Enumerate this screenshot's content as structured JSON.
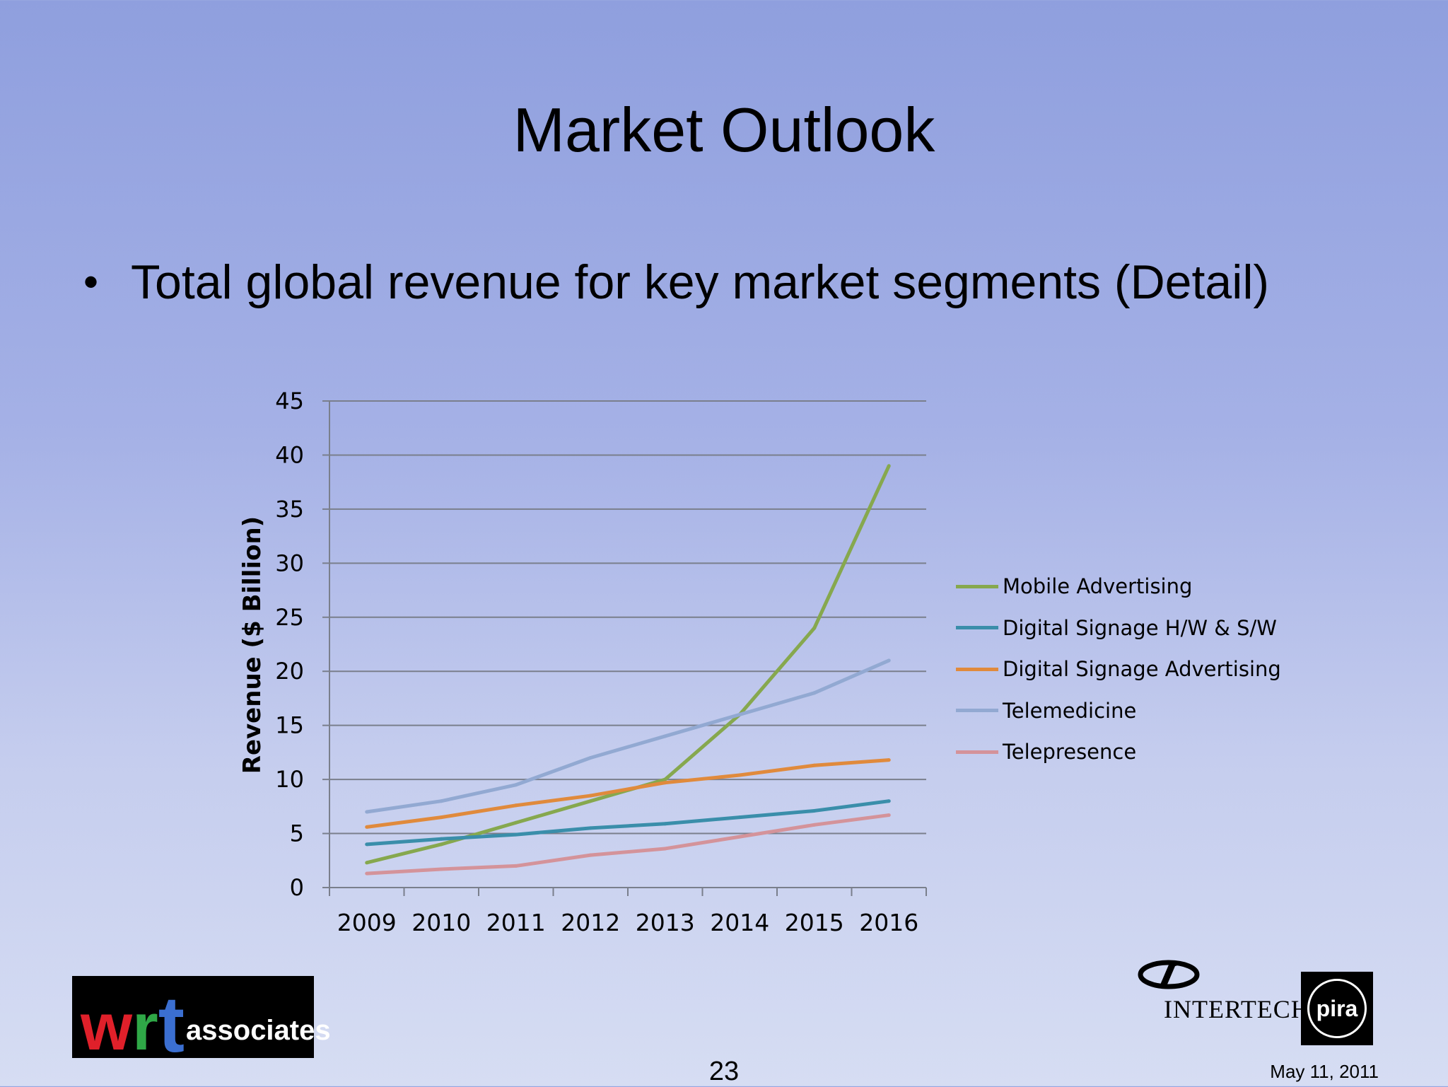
{
  "slide": {
    "title": "Market Outlook",
    "bullet_marker": "•",
    "bullet": "Total global revenue for key market segments (Detail)",
    "page_number": "23",
    "date": "May 11, 2011"
  },
  "logos": {
    "wrt": {
      "w": "w",
      "r": "r",
      "t": "t",
      "suffix": "associates"
    },
    "intertech": {
      "name": "INTERTECH",
      "badge": "pira"
    }
  },
  "chart_data": {
    "type": "line",
    "title": "",
    "xlabel": "",
    "ylabel": "Revenue ($ Billion)",
    "categories": [
      "2009",
      "2010",
      "2011",
      "2012",
      "2013",
      "2014",
      "2015",
      "2016"
    ],
    "ylim": [
      0,
      45
    ],
    "yticks": [
      0,
      5,
      10,
      15,
      20,
      25,
      30,
      35,
      40,
      45
    ],
    "grid": true,
    "legend_position": "right",
    "series": [
      {
        "name": "Mobile Advertising",
        "color": "#86a84e",
        "values": [
          2.3,
          4.0,
          6.0,
          8.0,
          10.0,
          16.0,
          24.0,
          39.0
        ]
      },
      {
        "name": "Digital Signage H/W & S/W",
        "color": "#3a8eaa",
        "values": [
          4.0,
          4.5,
          4.9,
          5.5,
          5.9,
          6.5,
          7.1,
          8.0
        ]
      },
      {
        "name": "Digital Signage Advertising",
        "color": "#e08a3c",
        "values": [
          5.6,
          6.5,
          7.6,
          8.5,
          9.7,
          10.4,
          11.3,
          11.8
        ]
      },
      {
        "name": "Telemedicine",
        "color": "#92a9d2",
        "values": [
          7.0,
          8.0,
          9.5,
          12.0,
          14.0,
          16.0,
          18.0,
          21.0
        ]
      },
      {
        "name": "Telepresence",
        "color": "#d4939a",
        "values": [
          1.3,
          1.7,
          2.0,
          3.0,
          3.6,
          4.7,
          5.8,
          6.7
        ]
      }
    ]
  }
}
